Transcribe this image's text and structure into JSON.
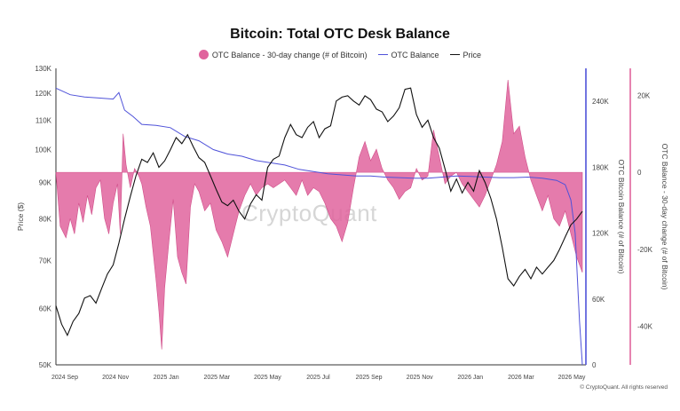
{
  "chart_data": {
    "type": "line",
    "title": "Bitcoin: Total OTC Desk Balance",
    "legend": {
      "placement": "top-center",
      "entries": [
        {
          "label": "OTC Balance - 30-day change (# of Bitcoin)",
          "color": "#e0649d",
          "kind": "area"
        },
        {
          "label": "OTC Balance",
          "color": "#4f52d9",
          "kind": "line"
        },
        {
          "label": "Price",
          "color": "#111111",
          "kind": "line"
        }
      ]
    },
    "x_axis": {
      "ticks": [
        "2024 Sep",
        "2024 Nov",
        "2025 Jan",
        "2025 Mar",
        "2025 May",
        "2025 Jul",
        "2025 Sep",
        "2025 Nov",
        "2026 Jan",
        "2026 Mar",
        "2026 May"
      ]
    },
    "y_left": {
      "label": "Price ($)",
      "scale": "log",
      "range": [
        50000,
        130000
      ],
      "ticks": [
        {
          "v": 130000,
          "t": "130K"
        },
        {
          "v": 120000,
          "t": "120K"
        },
        {
          "v": 110000,
          "t": "110K"
        },
        {
          "v": 100000,
          "t": "100K"
        },
        {
          "v": 90000,
          "t": "90K"
        },
        {
          "v": 80000,
          "t": "80K"
        },
        {
          "v": 70000,
          "t": "70K"
        },
        {
          "v": 60000,
          "t": "60K"
        },
        {
          "v": 50000,
          "t": "50K"
        }
      ]
    },
    "y_mid": {
      "label": "OTC Bitcoin Balance (# of Bitcoin)",
      "range": [
        0,
        270000
      ],
      "ticks": [
        {
          "v": 240000,
          "t": "240K"
        },
        {
          "v": 180000,
          "t": "180K"
        },
        {
          "v": 120000,
          "t": "120K"
        },
        {
          "v": 60000,
          "t": "60K"
        },
        {
          "v": 0,
          "t": "0"
        }
      ]
    },
    "y_right": {
      "label": "OTC Balance - 30-day change (# of Bitcoin)",
      "range": [
        -50000,
        27000
      ],
      "ticks": [
        {
          "v": 20000,
          "t": "20K"
        },
        {
          "v": 0,
          "t": "0"
        },
        {
          "v": -20000,
          "t": "-20K"
        },
        {
          "v": -40000,
          "t": "-40K"
        }
      ]
    },
    "series": [
      {
        "name": "Price",
        "color": "#111111",
        "points": [
          [
            0.0,
            60500
          ],
          [
            0.4,
            57000
          ],
          [
            0.8,
            55000
          ],
          [
            1.2,
            57500
          ],
          [
            1.6,
            59000
          ],
          [
            2.0,
            62000
          ],
          [
            2.4,
            62500
          ],
          [
            2.8,
            61000
          ],
          [
            3.2,
            64000
          ],
          [
            3.6,
            67000
          ],
          [
            4.0,
            69000
          ],
          [
            4.4,
            74000
          ],
          [
            4.8,
            80000
          ],
          [
            5.2,
            86000
          ],
          [
            5.6,
            92000
          ],
          [
            6.0,
            97000
          ],
          [
            6.4,
            96000
          ],
          [
            6.8,
            99000
          ],
          [
            7.2,
            94500
          ],
          [
            7.6,
            96500
          ],
          [
            8.0,
            100000
          ],
          [
            8.4,
            104000
          ],
          [
            8.8,
            102000
          ],
          [
            9.2,
            105000
          ],
          [
            9.6,
            101000
          ],
          [
            10.0,
            97500
          ],
          [
            10.4,
            96000
          ],
          [
            10.8,
            92000
          ],
          [
            11.2,
            88000
          ],
          [
            11.6,
            84500
          ],
          [
            12.0,
            83500
          ],
          [
            12.4,
            85000
          ],
          [
            12.8,
            82000
          ],
          [
            13.2,
            80000
          ],
          [
            13.6,
            84000
          ],
          [
            14.0,
            86500
          ],
          [
            14.4,
            85000
          ],
          [
            14.8,
            94500
          ],
          [
            15.2,
            97000
          ],
          [
            15.6,
            98000
          ],
          [
            16.0,
            104000
          ],
          [
            16.4,
            108500
          ],
          [
            16.8,
            105000
          ],
          [
            17.2,
            104000
          ],
          [
            17.6,
            107500
          ],
          [
            18.0,
            109500
          ],
          [
            18.4,
            104000
          ],
          [
            18.8,
            107000
          ],
          [
            19.2,
            108000
          ],
          [
            19.6,
            117000
          ],
          [
            20.0,
            118500
          ],
          [
            20.4,
            119000
          ],
          [
            20.8,
            117000
          ],
          [
            21.2,
            115500
          ],
          [
            21.6,
            119000
          ],
          [
            22.0,
            117500
          ],
          [
            22.4,
            114000
          ],
          [
            22.8,
            113000
          ],
          [
            23.2,
            109500
          ],
          [
            23.6,
            111500
          ],
          [
            24.0,
            114500
          ],
          [
            24.4,
            121500
          ],
          [
            24.8,
            122000
          ],
          [
            25.2,
            112000
          ],
          [
            25.6,
            107500
          ],
          [
            26.0,
            110000
          ],
          [
            26.4,
            104000
          ],
          [
            26.8,
            100500
          ],
          [
            27.2,
            94000
          ],
          [
            27.6,
            87500
          ],
          [
            28.0,
            91000
          ],
          [
            28.4,
            87000
          ],
          [
            28.8,
            90000
          ],
          [
            29.2,
            87500
          ],
          [
            29.6,
            93500
          ],
          [
            30.0,
            90000
          ],
          [
            30.4,
            85500
          ],
          [
            30.8,
            80000
          ],
          [
            31.2,
            73000
          ],
          [
            31.6,
            66000
          ],
          [
            32.0,
            64500
          ],
          [
            32.4,
            66500
          ],
          [
            32.8,
            68000
          ],
          [
            33.2,
            66000
          ],
          [
            33.6,
            68500
          ],
          [
            34.0,
            67000
          ],
          [
            34.4,
            68500
          ],
          [
            34.8,
            70000
          ],
          [
            35.2,
            72500
          ],
          [
            35.6,
            75500
          ],
          [
            36.0,
            78500
          ],
          [
            36.4,
            80000
          ],
          [
            36.8,
            82000
          ]
        ]
      },
      {
        "name": "OTC Balance",
        "color": "#4f52d9",
        "points": [
          [
            0.0,
            252000
          ],
          [
            1.0,
            246000
          ],
          [
            2.0,
            244000
          ],
          [
            3.0,
            243000
          ],
          [
            4.0,
            242000
          ],
          [
            4.4,
            248000
          ],
          [
            4.8,
            232000
          ],
          [
            5.4,
            226000
          ],
          [
            6.0,
            219000
          ],
          [
            7.0,
            218000
          ],
          [
            8.0,
            216000
          ],
          [
            9.0,
            208000
          ],
          [
            10.0,
            204000
          ],
          [
            11.0,
            196000
          ],
          [
            12.0,
            192000
          ],
          [
            13.0,
            190000
          ],
          [
            14.0,
            186000
          ],
          [
            15.0,
            184000
          ],
          [
            16.0,
            182000
          ],
          [
            17.0,
            178000
          ],
          [
            18.0,
            176000
          ],
          [
            19.0,
            174000
          ],
          [
            20.0,
            173000
          ],
          [
            21.0,
            172000
          ],
          [
            22.0,
            172000
          ],
          [
            23.0,
            171000
          ],
          [
            24.0,
            170500
          ],
          [
            25.0,
            170000
          ],
          [
            26.0,
            170000
          ],
          [
            27.0,
            171000
          ],
          [
            28.0,
            172000
          ],
          [
            29.0,
            171500
          ],
          [
            30.0,
            171000
          ],
          [
            31.0,
            170500
          ],
          [
            32.0,
            170500
          ],
          [
            33.0,
            171000
          ],
          [
            34.0,
            170000
          ],
          [
            35.0,
            168000
          ],
          [
            35.6,
            164000
          ],
          [
            36.0,
            150000
          ],
          [
            36.3,
            120000
          ],
          [
            36.6,
            40000
          ],
          [
            36.8,
            0
          ]
        ]
      },
      {
        "name": "OTC Balance - 30-day change (# of Bitcoin)",
        "color": "#e0649d",
        "points": [
          [
            0.0,
            0
          ],
          [
            0.3,
            -14000
          ],
          [
            0.7,
            -17000
          ],
          [
            1.0,
            -12000
          ],
          [
            1.3,
            -16000
          ],
          [
            1.6,
            -8000
          ],
          [
            1.9,
            -13000
          ],
          [
            2.2,
            -6000
          ],
          [
            2.5,
            -11000
          ],
          [
            2.8,
            -4000
          ],
          [
            3.1,
            -2000
          ],
          [
            3.4,
            -12000
          ],
          [
            3.7,
            -16000
          ],
          [
            4.0,
            -8000
          ],
          [
            4.3,
            -3000
          ],
          [
            4.5,
            -16000
          ],
          [
            4.7,
            10000
          ],
          [
            4.9,
            2000
          ],
          [
            5.2,
            -4000
          ],
          [
            5.5,
            1000
          ],
          [
            5.8,
            -1000
          ],
          [
            6.0,
            -3000
          ],
          [
            6.3,
            -9000
          ],
          [
            6.6,
            -14000
          ],
          [
            7.0,
            -28000
          ],
          [
            7.2,
            -36000
          ],
          [
            7.4,
            -46000
          ],
          [
            7.6,
            -30000
          ],
          [
            7.9,
            -18000
          ],
          [
            8.2,
            -7000
          ],
          [
            8.5,
            -22000
          ],
          [
            8.8,
            -26000
          ],
          [
            9.1,
            -29000
          ],
          [
            9.4,
            -9000
          ],
          [
            9.7,
            -3000
          ],
          [
            10.0,
            -5000
          ],
          [
            10.4,
            -10000
          ],
          [
            10.8,
            -8000
          ],
          [
            11.2,
            -15000
          ],
          [
            11.6,
            -18000
          ],
          [
            12.0,
            -22000
          ],
          [
            12.4,
            -16000
          ],
          [
            12.8,
            -10000
          ],
          [
            13.2,
            -6000
          ],
          [
            13.6,
            -3000
          ],
          [
            14.0,
            -6000
          ],
          [
            14.4,
            -4000
          ],
          [
            14.8,
            -3000
          ],
          [
            15.2,
            -4000
          ],
          [
            15.6,
            -3000
          ],
          [
            16.0,
            -2000
          ],
          [
            16.4,
            -4000
          ],
          [
            16.8,
            -6000
          ],
          [
            17.2,
            -2000
          ],
          [
            17.6,
            -6000
          ],
          [
            18.0,
            -4000
          ],
          [
            18.4,
            -5000
          ],
          [
            18.8,
            -8000
          ],
          [
            19.2,
            -12000
          ],
          [
            19.6,
            -14000
          ],
          [
            20.0,
            -18000
          ],
          [
            20.4,
            -13000
          ],
          [
            20.8,
            -4000
          ],
          [
            21.2,
            4000
          ],
          [
            21.6,
            8000
          ],
          [
            22.0,
            3000
          ],
          [
            22.4,
            6000
          ],
          [
            22.8,
            1000
          ],
          [
            23.2,
            -2000
          ],
          [
            23.6,
            -4000
          ],
          [
            24.0,
            -7000
          ],
          [
            24.4,
            -5000
          ],
          [
            24.8,
            -4000
          ],
          [
            25.2,
            1000
          ],
          [
            25.6,
            -2000
          ],
          [
            26.0,
            -1000
          ],
          [
            26.4,
            11000
          ],
          [
            26.8,
            4000
          ],
          [
            27.2,
            -3000
          ],
          [
            27.6,
            -1000
          ],
          [
            28.0,
            0
          ],
          [
            28.4,
            -3000
          ],
          [
            28.8,
            -5000
          ],
          [
            29.2,
            -7000
          ],
          [
            29.6,
            -9000
          ],
          [
            30.0,
            -6000
          ],
          [
            30.4,
            -2000
          ],
          [
            30.8,
            2000
          ],
          [
            31.2,
            8000
          ],
          [
            31.6,
            24000
          ],
          [
            32.0,
            10000
          ],
          [
            32.4,
            12000
          ],
          [
            32.8,
            4000
          ],
          [
            33.2,
            -2000
          ],
          [
            33.6,
            -6000
          ],
          [
            34.0,
            -10000
          ],
          [
            34.4,
            -6000
          ],
          [
            34.8,
            -12000
          ],
          [
            35.2,
            -14000
          ],
          [
            35.6,
            -10000
          ],
          [
            36.0,
            -16000
          ],
          [
            36.4,
            -22000
          ],
          [
            36.8,
            -26000
          ]
        ]
      }
    ],
    "grid": false
  },
  "watermark": "CryptoQuant",
  "credit": "© CryptoQuant. All rights reserved"
}
